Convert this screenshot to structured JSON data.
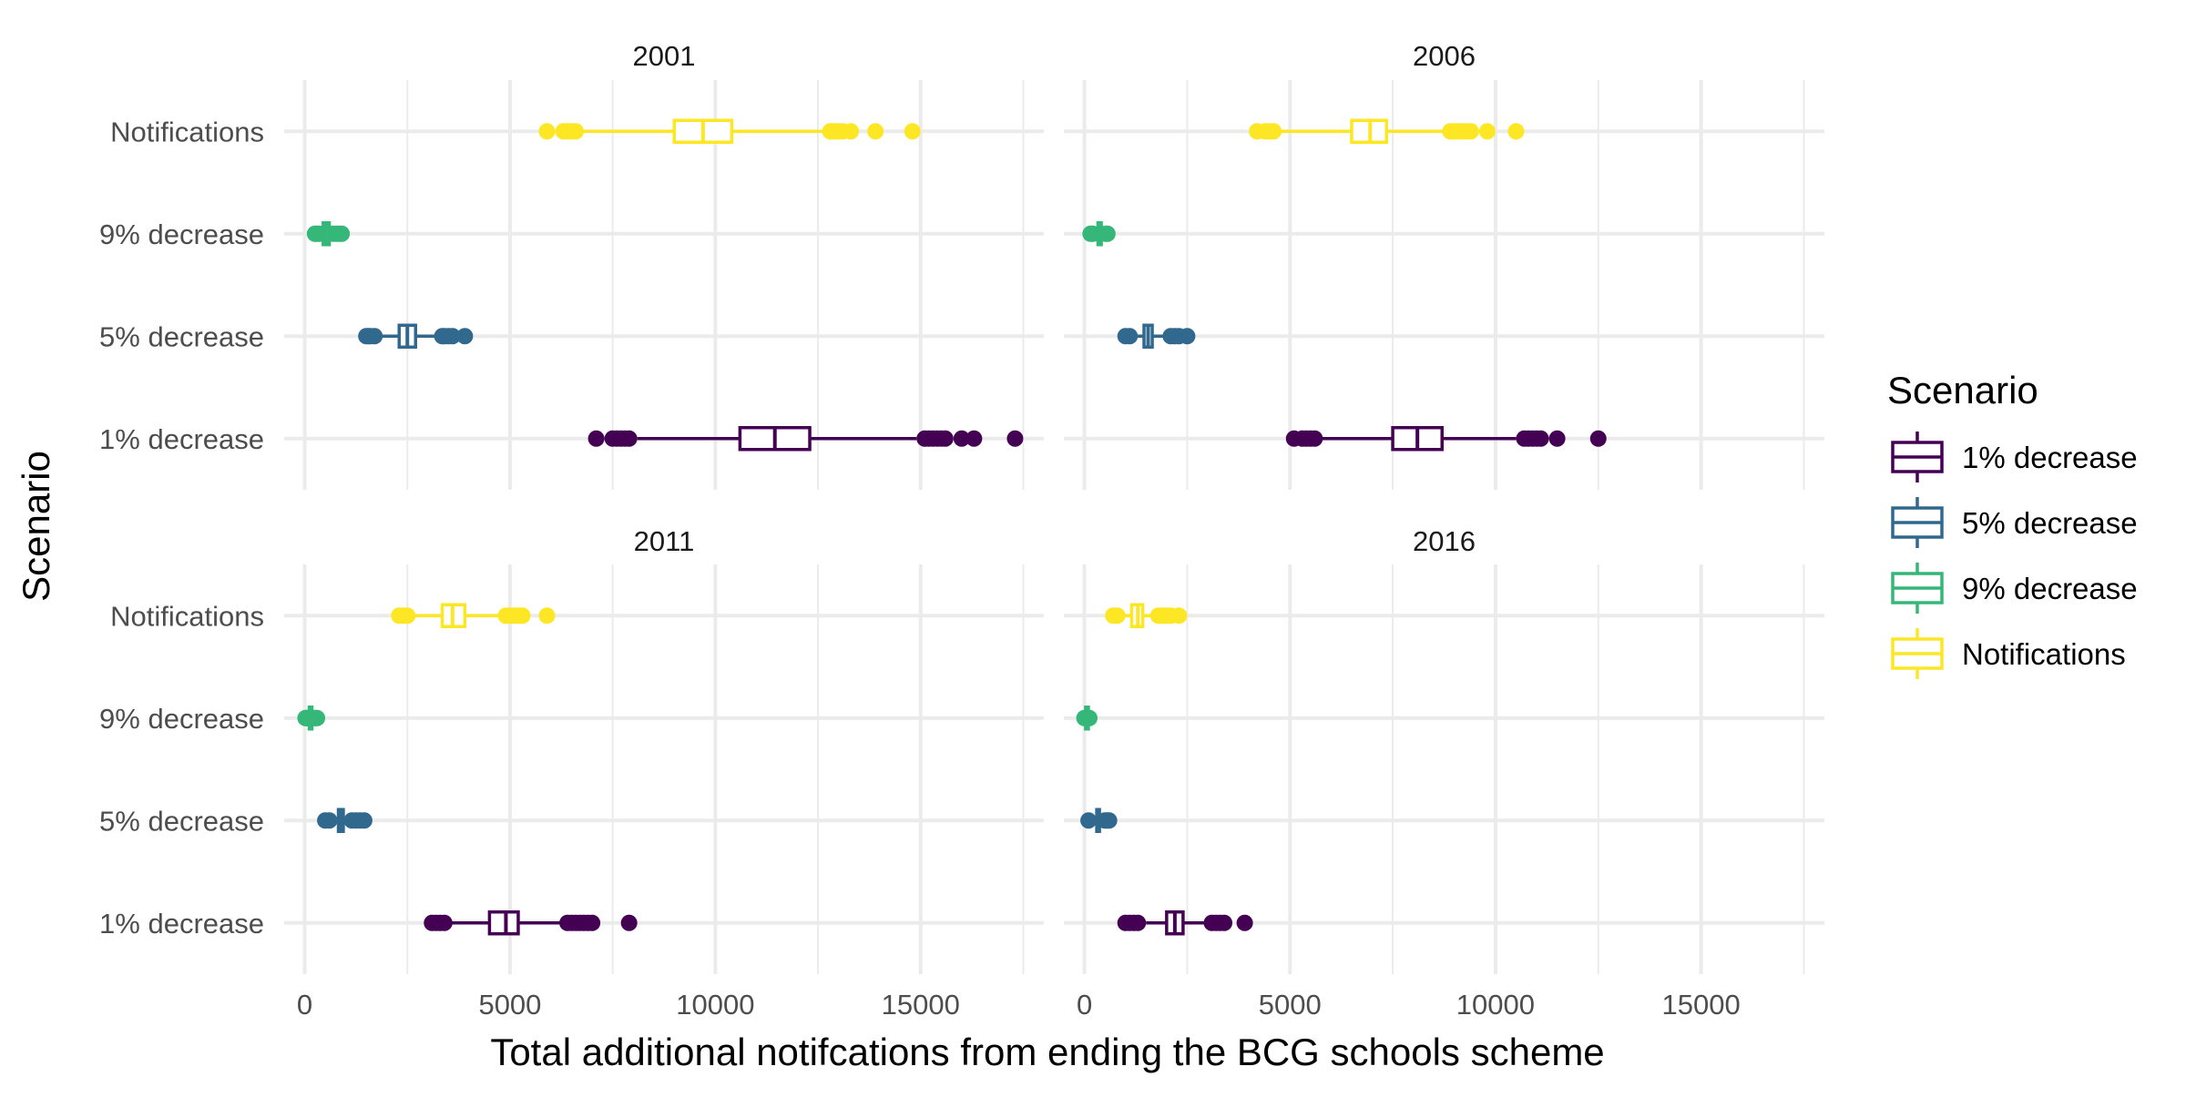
{
  "chart_data": {
    "type": "boxplot",
    "xlabel": "Total additional notifcations from ending the BCG schools scheme",
    "ylabel": "Scenario",
    "xlim": [
      -500,
      18000
    ],
    "x_ticks": [
      0,
      5000,
      10000,
      15000
    ],
    "x_tick_labels": [
      "0",
      "5000",
      "10000",
      "15000"
    ],
    "categories": [
      "Notifications",
      "9% decrease",
      "5% decrease",
      "1% decrease"
    ],
    "grid": true,
    "legend": {
      "title": "Scenario",
      "position": "right",
      "entries": [
        {
          "label": "1% decrease",
          "color": "#440154"
        },
        {
          "label": "5% decrease",
          "color": "#31688E"
        },
        {
          "label": "9% decrease",
          "color": "#35B779"
        },
        {
          "label": "Notifications",
          "color": "#FDE725"
        }
      ]
    },
    "panels": [
      {
        "title": "2001",
        "series": [
          {
            "name": "Notifications",
            "color": "#FDE725",
            "whisker_low": 6750,
            "q1": 9000,
            "median": 9700,
            "q3": 10400,
            "whisker_high": 12700,
            "outliers": [
              5900,
              6300,
              6400,
              6500,
              6600,
              12800,
              12900,
              13000,
              13100,
              13300,
              13900,
              14800
            ]
          },
          {
            "name": "9% decrease",
            "color": "#35B779",
            "whisker_low": 330,
            "q1": 450,
            "median": 520,
            "q3": 600,
            "whisker_high": 720,
            "outliers": [
              250,
              300,
              350,
              700,
              780,
              850,
              900
            ]
          },
          {
            "name": "5% decrease",
            "color": "#31688E",
            "whisker_low": 1800,
            "q1": 2300,
            "median": 2500,
            "q3": 2700,
            "whisker_high": 3300,
            "outliers": [
              1500,
              1550,
              1600,
              1700,
              3350,
              3400,
              3500,
              3600,
              3900
            ]
          },
          {
            "name": "1% decrease",
            "color": "#440154",
            "whisker_low": 8100,
            "q1": 10600,
            "median": 11450,
            "q3": 12300,
            "whisker_high": 14900,
            "outliers": [
              7100,
              7500,
              7600,
              7700,
              7800,
              7900,
              15100,
              15200,
              15300,
              15400,
              15500,
              15600,
              16000,
              16300,
              17300
            ]
          }
        ]
      },
      {
        "title": "2006",
        "series": [
          {
            "name": "Notifications",
            "color": "#FDE725",
            "whisker_low": 4750,
            "q1": 6500,
            "median": 6950,
            "q3": 7350,
            "whisker_high": 8900,
            "outliers": [
              4200,
              4400,
              4500,
              4600,
              8900,
              9000,
              9100,
              9200,
              9300,
              9400,
              9800,
              10500
            ]
          },
          {
            "name": "9% decrease",
            "color": "#35B779",
            "whisker_low": 250,
            "q1": 330,
            "median": 370,
            "q3": 410,
            "whisker_high": 480,
            "outliers": [
              150,
              200,
              520,
              560
            ]
          },
          {
            "name": "5% decrease",
            "color": "#31688E",
            "whisker_low": 1200,
            "q1": 1450,
            "median": 1550,
            "q3": 1650,
            "whisker_high": 2000,
            "outliers": [
              1000,
              1100,
              2100,
              2200,
              2300,
              2500
            ]
          },
          {
            "name": "1% decrease",
            "color": "#440154",
            "whisker_low": 5700,
            "q1": 7500,
            "median": 8100,
            "q3": 8700,
            "whisker_high": 10500,
            "outliers": [
              5100,
              5300,
              5400,
              5500,
              5600,
              10700,
              10800,
              10900,
              11000,
              11100,
              11500,
              12500
            ]
          }
        ]
      },
      {
        "title": "2011",
        "series": [
          {
            "name": "Notifications",
            "color": "#FDE725",
            "whisker_low": 2600,
            "q1": 3350,
            "median": 3600,
            "q3": 3900,
            "whisker_high": 4800,
            "outliers": [
              2300,
              2400,
              2500,
              4900,
              5000,
              5100,
              5200,
              5300,
              5900
            ]
          },
          {
            "name": "9% decrease",
            "color": "#35B779",
            "whisker_low": 80,
            "q1": 110,
            "median": 130,
            "q3": 150,
            "whisker_high": 200,
            "outliers": [
              20,
              40,
              60,
              230,
              260,
              300
            ]
          },
          {
            "name": "5% decrease",
            "color": "#31688E",
            "whisker_low": 700,
            "q1": 820,
            "median": 880,
            "q3": 940,
            "whisker_high": 1100,
            "outliers": [
              500,
              600,
              1150,
              1250,
              1350,
              1450
            ]
          },
          {
            "name": "1% decrease",
            "color": "#440154",
            "whisker_low": 3500,
            "q1": 4500,
            "median": 4900,
            "q3": 5200,
            "whisker_high": 6300,
            "outliers": [
              3100,
              3200,
              3300,
              3400,
              6400,
              6500,
              6600,
              6700,
              6800,
              6900,
              7000,
              7900
            ]
          }
        ]
      },
      {
        "title": "2016",
        "series": [
          {
            "name": "Notifications",
            "color": "#FDE725",
            "whisker_low": 900,
            "q1": 1150,
            "median": 1300,
            "q3": 1420,
            "whisker_high": 1750,
            "outliers": [
              700,
              800,
              1800,
              1900,
              2000,
              2100,
              2300
            ]
          },
          {
            "name": "9% decrease",
            "color": "#35B779",
            "whisker_low": 10,
            "q1": 30,
            "median": 40,
            "q3": 50,
            "whisker_high": 80,
            "outliers": [
              0,
              100,
              120
            ]
          },
          {
            "name": "5% decrease",
            "color": "#31688E",
            "whisker_low": 200,
            "q1": 300,
            "median": 330,
            "q3": 360,
            "whisker_high": 450,
            "outliers": [
              100,
              500,
              550,
              600
            ]
          },
          {
            "name": "1% decrease",
            "color": "#440154",
            "whisker_low": 1500,
            "q1": 2000,
            "median": 2200,
            "q3": 2400,
            "whisker_high": 3000,
            "outliers": [
              1000,
              1100,
              1200,
              1300,
              3100,
              3200,
              3300,
              3400,
              3900
            ]
          }
        ]
      }
    ]
  }
}
